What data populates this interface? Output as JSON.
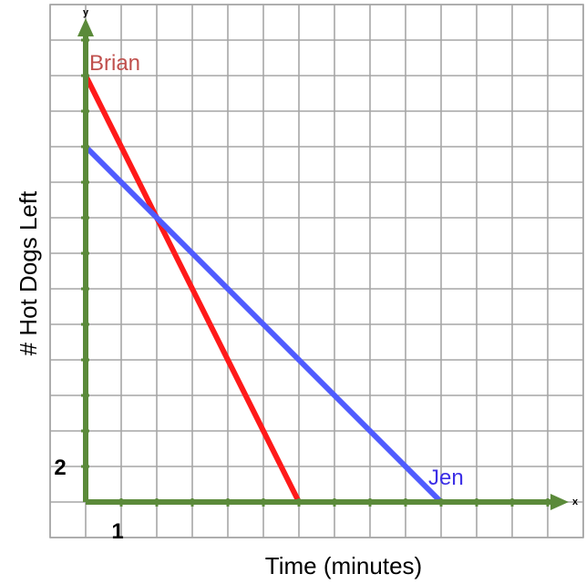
{
  "chart_data": {
    "type": "line",
    "xlabel": "Time (minutes)",
    "ylabel": "# Hot Dogs Left",
    "x_axis_letter": "x",
    "y_axis_letter": "y",
    "x_tick_labels": [
      {
        "value": 1,
        "label": "1"
      }
    ],
    "y_tick_labels": [
      {
        "value": 2,
        "label": "2"
      }
    ],
    "xlim": [
      0,
      14
    ],
    "ylim": [
      0,
      26
    ],
    "grid": true,
    "series": [
      {
        "name": "Brian",
        "color": "#ff1a1a",
        "label_color": "#c0504d",
        "x": [
          0,
          6
        ],
        "y": [
          24,
          0
        ]
      },
      {
        "name": "Jen",
        "color": "#4f5bff",
        "label_color": "#3b2ee6",
        "x": [
          0,
          10
        ],
        "y": [
          20,
          0
        ]
      }
    ]
  }
}
